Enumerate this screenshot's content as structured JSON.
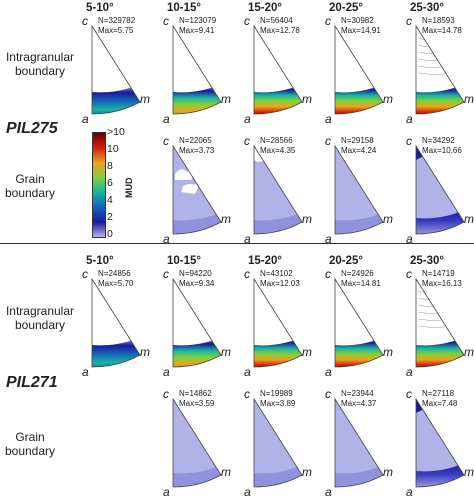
{
  "columns": [
    "5-10°",
    "10-15°",
    "15-20°",
    "20-25°",
    "25-30°"
  ],
  "axis_labels": {
    "c": "c",
    "a": "a",
    "m": "m"
  },
  "colorbar": {
    "label": "MUD",
    "ticks": [
      ">10",
      "10",
      "8",
      "6",
      "4",
      "2",
      "0"
    ],
    "stops": [
      "#6e0000",
      "#d21d0d",
      "#f0a21e",
      "#7fd138",
      "#19b3a0",
      "#1563b8",
      "#1a1a9b",
      "#b6b8ea"
    ]
  },
  "samples": [
    {
      "name": "PIL275",
      "rows": [
        {
          "label": "Intragranular\nboundary",
          "panels": [
            {
              "stat": "N=329782\nMax=5.75",
              "pattern": "band",
              "intensity": 0.55
            },
            {
              "stat": "N=123079\nMax=9.41",
              "pattern": "band",
              "intensity": 0.8
            },
            {
              "stat": "N=56404\nMax=12.78",
              "pattern": "band",
              "intensity": 0.95
            },
            {
              "stat": "N=30982\nMax=14.91",
              "pattern": "band",
              "intensity": 1.0
            },
            {
              "stat": "N=18593\nMax=14.78",
              "pattern": "band-faint",
              "intensity": 1.0
            }
          ]
        },
        {
          "label": "Grain\nboundary",
          "panels": [
            {
              "stat": "",
              "pattern": "none",
              "intensity": 0
            },
            {
              "stat": "N=22065\nMax=3.73",
              "pattern": "fill-holes",
              "intensity": 0.35
            },
            {
              "stat": "N=28566\nMax=4.35",
              "pattern": "fill-partial",
              "intensity": 0.4
            },
            {
              "stat": "N=29158\nMax=4.24",
              "pattern": "fill",
              "intensity": 0.4
            },
            {
              "stat": "N=34292\nMax=10.66",
              "pattern": "fill-dark",
              "intensity": 0.8
            }
          ]
        }
      ]
    },
    {
      "name": "PIL271",
      "rows": [
        {
          "label": "Intragranular\nboundary",
          "panels": [
            {
              "stat": "N=24856\nMax=5.70",
              "pattern": "band",
              "intensity": 0.55
            },
            {
              "stat": "N=94220\nMax=9.34",
              "pattern": "band",
              "intensity": 0.8
            },
            {
              "stat": "N=43102\nMax=12.03",
              "pattern": "band",
              "intensity": 0.95
            },
            {
              "stat": "N=24926\nMax=14.81",
              "pattern": "band",
              "intensity": 1.0
            },
            {
              "stat": "N=14719\nMax=16.13",
              "pattern": "band-faint",
              "intensity": 1.0
            }
          ]
        },
        {
          "label": "Grain\nboundary",
          "panels": [
            {
              "stat": "",
              "pattern": "none",
              "intensity": 0
            },
            {
              "stat": "N=14862\nMax=3.59",
              "pattern": "fill",
              "intensity": 0.35
            },
            {
              "stat": "N=19989\nMax=3.89",
              "pattern": "fill",
              "intensity": 0.35
            },
            {
              "stat": "N=23944\nMax=4.37",
              "pattern": "fill",
              "intensity": 0.4
            },
            {
              "stat": "N=27118\nMax=7.48",
              "pattern": "fill-dark",
              "intensity": 0.7
            }
          ]
        }
      ]
    }
  ]
}
